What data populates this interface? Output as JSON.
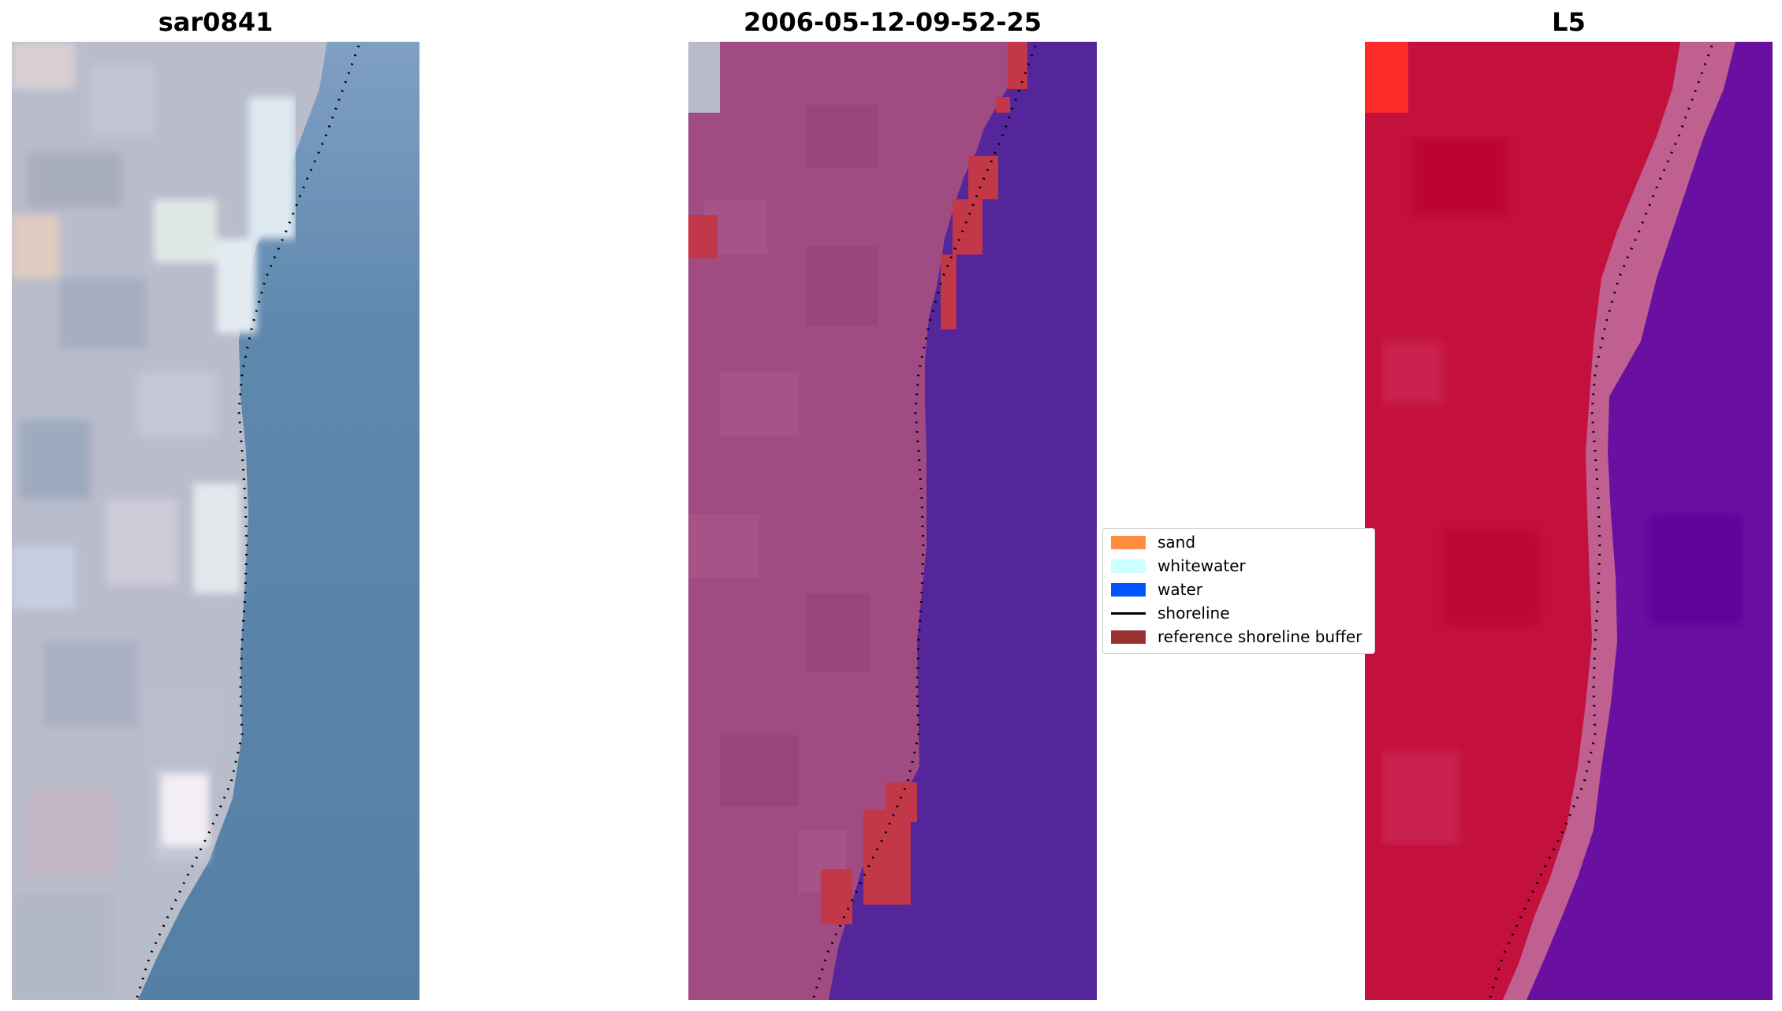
{
  "titles": {
    "left": "sar0841",
    "middle": "2006-05-12-09-52-25",
    "right": "L5"
  },
  "legend": {
    "items": [
      {
        "label": "sand",
        "kind": "patch",
        "color": "#ff8c3c"
      },
      {
        "label": "whitewater",
        "kind": "patch",
        "color": "#ccffff"
      },
      {
        "label": "water",
        "kind": "patch",
        "color": "#0055ff"
      },
      {
        "label": "shoreline",
        "kind": "line",
        "color": "#000000"
      },
      {
        "label": "reference shoreline buffer",
        "kind": "patch",
        "color": "#993333"
      }
    ]
  },
  "colors": {
    "rgb_land": "#b4b9c8",
    "rgb_water": "#5a82a8",
    "classified_land": "#a04a80",
    "classified_water": "#55259a",
    "buffer": "#c03040",
    "ndwi_land": "#c0103a",
    "ndwi_water": "#6a10a0"
  }
}
